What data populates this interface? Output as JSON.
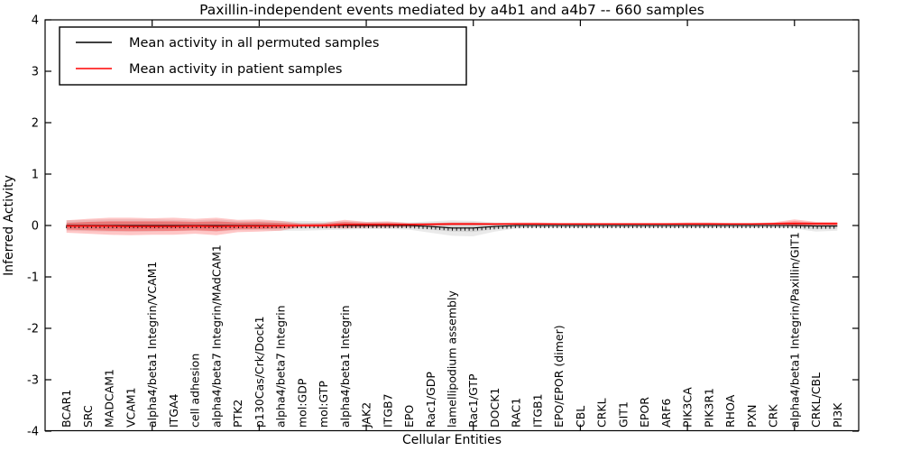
{
  "title": "Paxillin-independent events mediated by a4b1 and a4b7 -- 660 samples",
  "xlabel": "Cellular Entities",
  "ylabel": "Inferred Activity",
  "legend": {
    "position": "upper left",
    "entries": [
      {
        "label": "Mean activity in all permuted samples",
        "color": "#000000"
      },
      {
        "label": "Mean activity in patient samples",
        "color": "#ff0000"
      }
    ]
  },
  "colors": {
    "black_line": "#000000",
    "red_line": "#ff0000",
    "gray_band": "#888888",
    "red_band": "#ff0000",
    "axis": "#000000",
    "background": "#ffffff"
  },
  "chart_data": {
    "type": "line",
    "title": "Paxillin-independent events mediated by a4b1 and a4b7 -- 660 samples",
    "xlabel": "Cellular Entities",
    "ylabel": "Inferred Activity",
    "ylim": [
      -4,
      4
    ],
    "yticks": [
      -4,
      -3,
      -2,
      -1,
      0,
      1,
      2,
      3,
      4
    ],
    "xtick_every_units": 5,
    "grid": false,
    "legend_position": "upper left",
    "categories": [
      "BCAR1",
      "SRC",
      "MADCAM1",
      "VCAM1",
      "alpha4/beta1 Integrin/VCAM1",
      "ITGA4",
      "cell adhesion",
      "alpha4/beta7 Integrin/MAdCAM1",
      "PTK2",
      "p130Cas/Crk/Dock1",
      "alpha4/beta7 Integrin",
      "mol:GDP",
      "mol:GTP",
      "alpha4/beta1 Integrin",
      "JAK2",
      "ITGB7",
      "EPO",
      "Rac1/GDP",
      "lamellipodium assembly",
      "Rac1/GTP",
      "DOCK1",
      "RAC1",
      "ITGB1",
      "EPO/EPOR (dimer)",
      "CBL",
      "CRKL",
      "GIT1",
      "EPOR",
      "ARF6",
      "PIK3CA",
      "PIK3R1",
      "RHOA",
      "PXN",
      "CRK",
      "alpha4/beta1 Integrin/Paxillin/GIT1",
      "CRKL/CBL",
      "PI3K"
    ],
    "series": [
      {
        "name": "Mean activity in all permuted samples",
        "color": "#000000",
        "values": [
          0,
          0,
          0,
          0,
          0,
          0,
          0,
          0,
          0,
          0,
          0,
          0,
          0,
          0,
          0,
          0,
          0,
          -0.02,
          -0.05,
          -0.05,
          -0.02,
          0,
          0,
          0,
          0,
          0,
          0,
          0,
          0,
          0,
          0,
          0,
          0,
          0,
          0,
          -0.01,
          -0.01
        ]
      },
      {
        "name": "Mean activity in patient samples",
        "color": "#ff0000",
        "values": [
          -0.01,
          -0.01,
          -0.01,
          -0.015,
          -0.015,
          -0.015,
          -0.01,
          -0.015,
          -0.01,
          -0.01,
          -0.005,
          0,
          0,
          0.02,
          0.02,
          0.02,
          0.02,
          0.025,
          0.03,
          0.03,
          0.03,
          0.03,
          0.03,
          0.03,
          0.03,
          0.03,
          0.03,
          0.03,
          0.03,
          0.03,
          0.03,
          0.03,
          0.03,
          0.035,
          0.04,
          0.035,
          0.035
        ]
      }
    ],
    "bands": [
      {
        "name": "permuted-range-outer",
        "color": "#888888",
        "opacity": 0.18,
        "upper": [
          0.1,
          0.11,
          0.12,
          0.12,
          0.12,
          0.11,
          0.1,
          0.12,
          0.09,
          0.09,
          0.09,
          0.09,
          0.08,
          0.08,
          0.07,
          0.07,
          0.06,
          0.08,
          0.1,
          0.09,
          0.06,
          0.05,
          0.05,
          0.05,
          0.05,
          0.05,
          0.05,
          0.05,
          0.05,
          0.05,
          0.05,
          0.05,
          0.05,
          0.05,
          0.06,
          0.06,
          0.05
        ],
        "lower": [
          -0.1,
          -0.11,
          -0.12,
          -0.12,
          -0.12,
          -0.11,
          -0.1,
          -0.12,
          -0.09,
          -0.09,
          -0.1,
          -0.1,
          -0.09,
          -0.08,
          -0.07,
          -0.07,
          -0.08,
          -0.14,
          -0.2,
          -0.21,
          -0.12,
          -0.06,
          -0.05,
          -0.05,
          -0.05,
          -0.05,
          -0.05,
          -0.05,
          -0.05,
          -0.05,
          -0.05,
          -0.05,
          -0.05,
          -0.05,
          -0.06,
          -0.12,
          -0.1
        ]
      },
      {
        "name": "permuted-range-inner",
        "color": "#888888",
        "opacity": 0.2,
        "upper": [
          0.06,
          0.066,
          0.072,
          0.072,
          0.072,
          0.066,
          0.06,
          0.072,
          0.054,
          0.054,
          0.054,
          0.054,
          0.048,
          0.048,
          0.042,
          0.042,
          0.036,
          0.048,
          0.06,
          0.054,
          0.036,
          0.03,
          0.03,
          0.03,
          0.03,
          0.03,
          0.03,
          0.03,
          0.03,
          0.03,
          0.03,
          0.03,
          0.03,
          0.03,
          0.036,
          0.036,
          0.03
        ],
        "lower": [
          -0.06,
          -0.066,
          -0.072,
          -0.072,
          -0.072,
          -0.066,
          -0.06,
          -0.072,
          -0.054,
          -0.054,
          -0.06,
          -0.06,
          -0.054,
          -0.048,
          -0.042,
          -0.042,
          -0.048,
          -0.084,
          -0.12,
          -0.126,
          -0.072,
          -0.036,
          -0.03,
          -0.03,
          -0.03,
          -0.03,
          -0.03,
          -0.03,
          -0.03,
          -0.03,
          -0.03,
          -0.03,
          -0.03,
          -0.03,
          -0.036,
          -0.072,
          -0.06
        ]
      },
      {
        "name": "patient-range-outer",
        "color": "#ff0000",
        "opacity": 0.22,
        "upper": [
          0.1,
          0.13,
          0.15,
          0.15,
          0.14,
          0.15,
          0.13,
          0.15,
          0.11,
          0.12,
          0.09,
          0.04,
          0.05,
          0.11,
          0.07,
          0.08,
          0.05,
          0.05,
          0.06,
          0.06,
          0.05,
          0.06,
          0.06,
          0.05,
          0.05,
          0.05,
          0.05,
          0.05,
          0.05,
          0.06,
          0.06,
          0.05,
          0.05,
          0.06,
          0.12,
          0.07,
          0.07
        ],
        "lower": [
          -0.14,
          -0.16,
          -0.18,
          -0.19,
          -0.18,
          -0.18,
          -0.16,
          -0.19,
          -0.13,
          -0.12,
          -0.1,
          -0.03,
          -0.04,
          -0.06,
          -0.04,
          -0.04,
          -0.03,
          -0.01,
          0,
          0,
          0,
          0.01,
          0.01,
          0.01,
          0.01,
          0.01,
          0.01,
          0.01,
          0.01,
          0.01,
          0.01,
          0.01,
          0.01,
          0.01,
          -0.02,
          0,
          0
        ]
      },
      {
        "name": "patient-range-inner",
        "color": "#ff0000",
        "opacity": 0.28,
        "upper": [
          0.05,
          0.07,
          0.08,
          0.08,
          0.08,
          0.08,
          0.07,
          0.08,
          0.06,
          0.065,
          0.05,
          0.022,
          0.028,
          0.07,
          0.048,
          0.053,
          0.037,
          0.039,
          0.047,
          0.047,
          0.041,
          0.047,
          0.047,
          0.041,
          0.041,
          0.041,
          0.041,
          0.041,
          0.041,
          0.047,
          0.047,
          0.041,
          0.041,
          0.049,
          0.084,
          0.054,
          0.054
        ],
        "lower": [
          -0.081,
          -0.092,
          -0.104,
          -0.111,
          -0.106,
          -0.106,
          -0.093,
          -0.111,
          -0.076,
          -0.071,
          -0.058,
          -0.017,
          -0.022,
          -0.024,
          -0.013,
          -0.013,
          -0.008,
          0.006,
          0.014,
          0.014,
          0.014,
          0.019,
          0.019,
          0.019,
          0.019,
          0.019,
          0.019,
          0.019,
          0.019,
          0.019,
          0.019,
          0.019,
          0.019,
          0.021,
          0.007,
          0.016,
          0.016
        ]
      }
    ]
  }
}
